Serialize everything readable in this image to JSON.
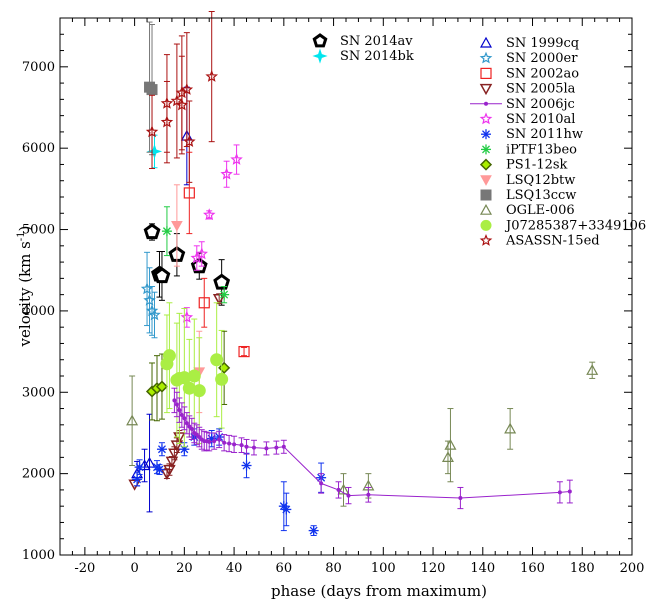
{
  "chart_data": {
    "type": "scatter",
    "title": "",
    "xlabel": "phase (days from maximum)",
    "ylabel_main": "velocity (km s",
    "ylabel_sup": "-1",
    "ylabel_end": ")",
    "xlim": [
      -30,
      200
    ],
    "ylim": [
      1000,
      7600
    ],
    "xticks": [
      -20,
      0,
      20,
      40,
      60,
      80,
      100,
      120,
      140,
      160,
      180,
      200
    ],
    "yticks": [
      1000,
      2000,
      3000,
      4000,
      5000,
      6000,
      7000
    ],
    "grid": false,
    "legend_left": [
      {
        "name": "SN 2014av",
        "color": "#000000",
        "marker": "pentagon"
      },
      {
        "name": "SN 2014bk",
        "color": "#00e5ee",
        "marker": "star4"
      }
    ],
    "legend_right": [
      {
        "name": "SN 1999cq",
        "color": "#0000cc",
        "marker": "triangle-up"
      },
      {
        "name": "SN 2000er",
        "color": "#3399cc",
        "marker": "star-open"
      },
      {
        "name": "SN 2002ao",
        "color": "#ee2222",
        "marker": "square-open"
      },
      {
        "name": "SN 2005la",
        "color": "#882222",
        "marker": "triangle-down"
      },
      {
        "name": "SN 2006jc",
        "color": "#9922cc",
        "marker": "line-dot"
      },
      {
        "name": "SN 2010al",
        "color": "#ee33ee",
        "marker": "star-open"
      },
      {
        "name": "SN 2011hw",
        "color": "#1133ee",
        "marker": "asterisk"
      },
      {
        "name": "iPTF13beo",
        "color": "#22cc44",
        "marker": "asterisk"
      },
      {
        "name": "PS1-12sk",
        "color": "#446600",
        "marker": "diamond"
      },
      {
        "name": "LSQ12btw",
        "color": "#ff9999",
        "marker": "triangle-down-filled"
      },
      {
        "name": "LSQ13ccw",
        "color": "#777777",
        "marker": "square"
      },
      {
        "name": "OGLE-006",
        "color": "#778855",
        "marker": "triangle-open"
      },
      {
        "name": "J07285387+3349106",
        "color": "#aaee44",
        "marker": "circle"
      },
      {
        "name": "ASASSN-15ed",
        "color": "#aa1111",
        "marker": "star-open"
      }
    ],
    "series": [
      {
        "name": "SN 2014av",
        "marker": "pentagon",
        "color": "#000000",
        "size": 7,
        "points": [
          [
            7,
            4970,
            100
          ],
          [
            10,
            4450,
            280
          ],
          [
            11,
            4430,
            300
          ],
          [
            17,
            4690,
            260
          ],
          [
            26,
            4550,
            160
          ],
          [
            35,
            4350,
            280
          ]
        ]
      },
      {
        "name": "SN 2014bk",
        "marker": "star4",
        "color": "#00e5ee",
        "size": 6,
        "points": [
          [
            8,
            5960,
            200
          ]
        ]
      },
      {
        "name": "SN 1999cq",
        "marker": "triangle-up",
        "color": "#0000cc",
        "size": 5,
        "points": [
          [
            1,
            2000,
            150
          ],
          [
            4,
            2100,
            200
          ],
          [
            6,
            2130,
            600
          ],
          [
            21,
            6150,
            600
          ]
        ]
      },
      {
        "name": "SN 2000er",
        "marker": "star-open",
        "color": "#3399cc",
        "size": 5,
        "points": [
          [
            5,
            4270,
            450
          ],
          [
            6,
            4130,
            400
          ],
          [
            7,
            4000,
            300
          ],
          [
            8,
            3950,
            280
          ]
        ]
      },
      {
        "name": "SN 2002ao",
        "marker": "square-open",
        "color": "#ee2222",
        "size": 5,
        "points": [
          [
            22,
            5450,
            500
          ],
          [
            28,
            4100,
            300
          ],
          [
            44,
            3500,
            50
          ]
        ]
      },
      {
        "name": "SN 2005la",
        "marker": "triangle-down",
        "color": "#882222",
        "size": 5,
        "points": [
          [
            0,
            1870,
            0
          ],
          [
            13,
            2000,
            60
          ],
          [
            14,
            2050,
            70
          ],
          [
            15,
            2150,
            60
          ],
          [
            16,
            2250,
            80
          ],
          [
            17,
            2350,
            90
          ],
          [
            18,
            2450,
            80
          ],
          [
            34,
            4150,
            60
          ]
        ]
      },
      {
        "name": "SN 2010al",
        "marker": "star-open",
        "color": "#ee33ee",
        "size": 5,
        "points": [
          [
            21,
            3920,
            120
          ],
          [
            25,
            4650,
            150
          ],
          [
            27,
            4700,
            150
          ],
          [
            30,
            5180,
            50
          ],
          [
            37,
            5680,
            160
          ],
          [
            41,
            5860,
            180
          ]
        ]
      },
      {
        "name": "SN 2011hw",
        "marker": "asterisk",
        "color": "#1133ee",
        "size": 5,
        "points": [
          [
            1,
            1930,
            80
          ],
          [
            2,
            2080,
            90
          ],
          [
            9,
            2080,
            80
          ],
          [
            10,
            2050,
            60
          ],
          [
            11,
            2300,
            80
          ],
          [
            20,
            2300,
            80
          ],
          [
            24,
            2450,
            100
          ],
          [
            31,
            2430,
            100
          ],
          [
            34,
            2450,
            100
          ],
          [
            45,
            2100,
            150
          ],
          [
            60,
            1600,
            300
          ],
          [
            61,
            1560,
            200
          ],
          [
            72,
            1300,
            60
          ],
          [
            75,
            1950,
            180
          ]
        ]
      },
      {
        "name": "iPTF13beo",
        "marker": "asterisk",
        "color": "#22cc44",
        "size": 5,
        "points": [
          [
            13,
            4980,
            300
          ],
          [
            36,
            4200,
            100
          ]
        ]
      },
      {
        "name": "PS1-12sk",
        "marker": "diamond",
        "color": "#446600",
        "size": 5,
        "points": [
          [
            7,
            3010,
            350
          ],
          [
            9,
            3050,
            400
          ],
          [
            11,
            3070,
            400
          ],
          [
            36,
            3300,
            450
          ]
        ]
      },
      {
        "name": "LSQ12btw",
        "marker": "triangle-down-filled",
        "color": "#ff9999",
        "size": 5,
        "points": [
          [
            17,
            5050,
            500
          ],
          [
            26,
            3250,
            500
          ]
        ]
      },
      {
        "name": "LSQ13ccw",
        "marker": "square",
        "color": "#777777",
        "size": 5,
        "points": [
          [
            6,
            6750,
            800
          ],
          [
            7,
            6720,
            800
          ]
        ]
      },
      {
        "name": "OGLE-006",
        "marker": "triangle-open",
        "color": "#778855",
        "size": 5,
        "points": [
          [
            -1,
            2650,
            550
          ],
          [
            84,
            1800,
            200
          ],
          [
            94,
            1850,
            150
          ],
          [
            126,
            2200,
            200
          ],
          [
            127,
            2350,
            450
          ],
          [
            151,
            2550,
            250
          ],
          [
            184,
            3270,
            100
          ]
        ]
      },
      {
        "name": "J07285387+3349106",
        "marker": "circle",
        "color": "#aaee44",
        "size": 6,
        "points": [
          [
            13,
            3350,
            600
          ],
          [
            14,
            3450,
            650
          ],
          [
            17,
            3150,
            700
          ],
          [
            18,
            3170,
            800
          ],
          [
            20,
            3180,
            850
          ],
          [
            22,
            3050,
            600
          ],
          [
            24,
            3200,
            700
          ],
          [
            26,
            3020,
            650
          ],
          [
            33,
            3400,
            700
          ],
          [
            35,
            3160,
            600
          ]
        ]
      },
      {
        "name": "ASASSN-15ed",
        "marker": "star-open",
        "color": "#aa1111",
        "size": 5,
        "points": [
          [
            7,
            6200,
            450
          ],
          [
            13,
            6550,
            600
          ],
          [
            13,
            6320,
            500
          ],
          [
            17,
            6580,
            700
          ],
          [
            19,
            6530,
            600
          ],
          [
            19,
            6680,
            700
          ],
          [
            21,
            6720,
            700
          ],
          [
            22,
            6080,
            500
          ],
          [
            31,
            6880,
            800
          ]
        ]
      },
      {
        "name": "SN 2006jc",
        "marker": "line-dot",
        "color": "#9922cc",
        "size": 2,
        "points": [
          [
            16,
            2900,
            150
          ],
          [
            17,
            2850,
            150
          ],
          [
            18,
            2780,
            150
          ],
          [
            19,
            2720,
            150
          ],
          [
            20,
            2680,
            140
          ],
          [
            21,
            2620,
            130
          ],
          [
            22,
            2580,
            130
          ],
          [
            23,
            2550,
            130
          ],
          [
            24,
            2500,
            120
          ],
          [
            25,
            2480,
            120
          ],
          [
            26,
            2450,
            120
          ],
          [
            27,
            2420,
            120
          ],
          [
            28,
            2400,
            120
          ],
          [
            29,
            2400,
            110
          ],
          [
            30,
            2390,
            110
          ],
          [
            32,
            2400,
            100
          ],
          [
            34,
            2420,
            100
          ],
          [
            36,
            2380,
            100
          ],
          [
            38,
            2370,
            100
          ],
          [
            40,
            2360,
            100
          ],
          [
            43,
            2350,
            90
          ],
          [
            45,
            2330,
            90
          ],
          [
            48,
            2320,
            90
          ],
          [
            53,
            2310,
            80
          ],
          [
            57,
            2320,
            80
          ],
          [
            60,
            2330,
            80
          ],
          [
            75,
            1880,
            120
          ],
          [
            82,
            1800,
            100
          ],
          [
            86,
            1730,
            100
          ],
          [
            94,
            1740,
            90
          ],
          [
            131,
            1700,
            130
          ],
          [
            171,
            1770,
            130
          ],
          [
            175,
            1780,
            140
          ]
        ]
      }
    ]
  }
}
